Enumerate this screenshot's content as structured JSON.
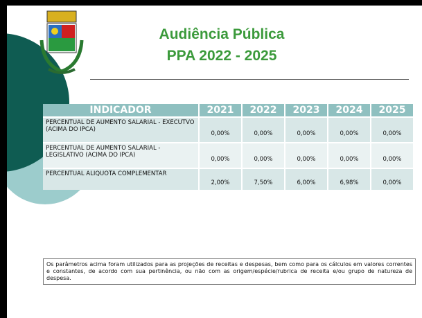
{
  "header": {
    "title_line1": "Audiência Pública",
    "title_line2": "PPA 2022 - 2025"
  },
  "table": {
    "columns": [
      "INDICADOR",
      "2021",
      "2022",
      "2023",
      "2024",
      "2025"
    ],
    "rows": [
      [
        "PERCENTUAL DE AUMENTO SALARIAL - EXECUTVO (ACIMA DO IPCA)",
        "0,00%",
        "0,00%",
        "0,00%",
        "0,00%",
        "0,00%"
      ],
      [
        "PERCENTUAL DE AUMENTO SALARIAL - LEGISLATIVO (ACIMA DO IPCA)",
        "0,00%",
        "0,00%",
        "0,00%",
        "0,00%",
        "0,00%"
      ],
      [
        "PERCENTUAL ALIQUOTA COMPLEMENTAR",
        "2,00%",
        "7,50%",
        "6,00%",
        "6,98%",
        "0,00%"
      ]
    ]
  },
  "footnote": "Os parâmetros acima foram utilizados para as projeções de receitas e despesas, bem como para os cálculos em valores correntes e constantes, de acordo com sua pertinência, ou não com as origem/espécie/rubrica de receita e/ou grupo de natureza de despesa."
}
